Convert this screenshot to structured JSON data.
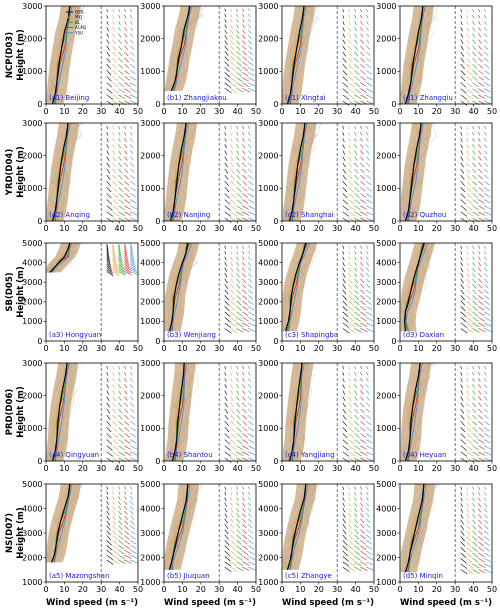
{
  "chart_data": {
    "type": "line",
    "description_x": "Wind speed (m s⁻¹)",
    "xlim": [
      0,
      50
    ],
    "xticks": [
      0,
      10,
      20,
      30,
      40,
      50
    ],
    "legend": [
      "OBS",
      "MYJ",
      "BL",
      "ACM2",
      "YSU"
    ],
    "colors": {
      "OBS": "#000000",
      "MYJ": "#f0a23c",
      "BL": "#2f9e2f",
      "ACM2": "#d62728",
      "YSU": "#3a8fd6",
      "envelope": "#c8a47a"
    },
    "xlabel": "Wind speed (m s$^{-1}$)",
    "rows": [
      {
        "ylabel_1": "NCP(D03)",
        "ylabel_2": "Height (m)",
        "ylim": [
          0,
          3000
        ],
        "yticks": [
          0,
          1000,
          2000,
          3000
        ],
        "panels": [
          {
            "label": "(a1) Beijing",
            "obs_profile": [
              [
                3.5,
                0
              ],
              [
                5,
                300
              ],
              [
                6,
                700
              ],
              [
                7,
                1200
              ],
              [
                8.5,
                1700
              ],
              [
                10,
                2200
              ],
              [
                12,
                2600
              ],
              [
                13,
                3000
              ]
            ]
          },
          {
            "label": "(b1) Zhangjiakou",
            "obs_profile": [
              [
                4,
                400
              ],
              [
                6,
                700
              ],
              [
                7,
                1000
              ],
              [
                8,
                1400
              ],
              [
                9.5,
                1800
              ],
              [
                11,
                2300
              ],
              [
                13,
                2700
              ],
              [
                14,
                3000
              ]
            ]
          },
          {
            "label": "(c1) Xingtai",
            "obs_profile": [
              [
                3,
                0
              ],
              [
                4.5,
                300
              ],
              [
                5.5,
                700
              ],
              [
                6.5,
                1200
              ],
              [
                8,
                1700
              ],
              [
                9.5,
                2200
              ],
              [
                11,
                2600
              ],
              [
                12,
                3000
              ]
            ]
          },
          {
            "label": "(d1) Zhangqiu",
            "obs_profile": [
              [
                3,
                0
              ],
              [
                4.5,
                300
              ],
              [
                6,
                700
              ],
              [
                7,
                1200
              ],
              [
                8.5,
                1700
              ],
              [
                10,
                2200
              ],
              [
                11.5,
                2600
              ],
              [
                12.5,
                3000
              ]
            ]
          }
        ]
      },
      {
        "ylabel_1": "YRD(D04)",
        "ylabel_2": "Height (m)",
        "ylim": [
          0,
          3000
        ],
        "yticks": [
          0,
          1000,
          2000,
          3000
        ],
        "panels": [
          {
            "label": "(a2) Anqing",
            "obs_profile": [
              [
                3.5,
                0
              ],
              [
                5,
                300
              ],
              [
                6,
                700
              ],
              [
                7,
                1200
              ],
              [
                8,
                1700
              ],
              [
                9.5,
                2200
              ],
              [
                11,
                2600
              ],
              [
                12,
                3000
              ]
            ]
          },
          {
            "label": "(b2) Nanjing",
            "obs_profile": [
              [
                3.5,
                0
              ],
              [
                5,
                300
              ],
              [
                6,
                700
              ],
              [
                7,
                1200
              ],
              [
                8,
                1700
              ],
              [
                9.5,
                2200
              ],
              [
                11,
                2600
              ],
              [
                12,
                3000
              ]
            ]
          },
          {
            "label": "(c2) Shanghai",
            "obs_profile": [
              [
                4,
                0
              ],
              [
                5.5,
                300
              ],
              [
                6.5,
                700
              ],
              [
                7.5,
                1200
              ],
              [
                8.5,
                1700
              ],
              [
                10,
                2200
              ],
              [
                11.5,
                2600
              ],
              [
                12.5,
                3000
              ]
            ]
          },
          {
            "label": "(d2) Quzhou",
            "obs_profile": [
              [
                3,
                0
              ],
              [
                4.5,
                300
              ],
              [
                5.5,
                700
              ],
              [
                6.5,
                1200
              ],
              [
                7.5,
                1700
              ],
              [
                9,
                2200
              ],
              [
                10.5,
                2600
              ],
              [
                11.5,
                3000
              ]
            ]
          }
        ]
      },
      {
        "ylabel_1": "SB(D05)",
        "ylabel_2": "Height (m)",
        "ylim": [
          0,
          5000
        ],
        "yticks": [
          0,
          1000,
          2000,
          3000,
          4000,
          5000
        ],
        "panels": [
          {
            "label": "(a3) Hongyuan",
            "obs_profile": [
              [
                2,
                3500
              ],
              [
                4,
                3700
              ],
              [
                6,
                3900
              ],
              [
                8,
                4100
              ],
              [
                10,
                4300
              ],
              [
                11,
                4500
              ],
              [
                12,
                4700
              ],
              [
                13,
                5000
              ]
            ]
          },
          {
            "label": "(b3) Wenjiang",
            "obs_profile": [
              [
                3,
                500
              ],
              [
                4,
                900
              ],
              [
                5,
                1500
              ],
              [
                5.5,
                2200
              ],
              [
                6.5,
                2800
              ],
              [
                8,
                3400
              ],
              [
                10,
                4000
              ],
              [
                12,
                4500
              ],
              [
                13,
                5000
              ]
            ]
          },
          {
            "label": "(c3) Shapingba",
            "obs_profile": [
              [
                2,
                500
              ],
              [
                3.5,
                1000
              ],
              [
                4.5,
                1600
              ],
              [
                5,
                2200
              ],
              [
                6,
                2800
              ],
              [
                7.5,
                3400
              ],
              [
                9.5,
                4000
              ],
              [
                11.5,
                4500
              ],
              [
                13,
                5000
              ]
            ]
          },
          {
            "label": "(d3) Daxian",
            "obs_profile": [
              [
                3,
                500
              ],
              [
                2.5,
                1000
              ],
              [
                3,
                1500
              ],
              [
                4.5,
                2000
              ],
              [
                6,
                2600
              ],
              [
                7.5,
                3200
              ],
              [
                9,
                3700
              ],
              [
                11,
                4300
              ],
              [
                13,
                5000
              ]
            ]
          }
        ]
      },
      {
        "ylabel_1": "PRD(D06)",
        "ylabel_2": "Height (m)",
        "ylim": [
          0,
          3000
        ],
        "yticks": [
          0,
          1000,
          2000,
          3000
        ],
        "panels": [
          {
            "label": "(a4) Qingyuan",
            "obs_profile": [
              [
                3.5,
                0
              ],
              [
                5,
                300
              ],
              [
                6,
                700
              ],
              [
                6.5,
                1200
              ],
              [
                7.5,
                1700
              ],
              [
                9,
                2200
              ],
              [
                10.5,
                2600
              ],
              [
                11.5,
                3000
              ]
            ]
          },
          {
            "label": "(b4) Shantou",
            "obs_profile": [
              [
                4.5,
                0
              ],
              [
                6,
                300
              ],
              [
                7,
                700
              ],
              [
                7.5,
                1200
              ],
              [
                8.5,
                1700
              ],
              [
                9.5,
                2200
              ],
              [
                10.5,
                2600
              ],
              [
                11,
                3000
              ]
            ]
          },
          {
            "label": "(c4) Yangjiang",
            "obs_profile": [
              [
                4,
                0
              ],
              [
                5.5,
                300
              ],
              [
                6.5,
                700
              ],
              [
                7,
                1200
              ],
              [
                8,
                1700
              ],
              [
                9,
                2200
              ],
              [
                10,
                2600
              ],
              [
                11,
                3000
              ]
            ]
          },
          {
            "label": "(d4) Heyuan",
            "obs_profile": [
              [
                3,
                0
              ],
              [
                4.5,
                300
              ],
              [
                5.5,
                700
              ],
              [
                6,
                1200
              ],
              [
                7,
                1700
              ],
              [
                8.5,
                2200
              ],
              [
                10,
                2600
              ],
              [
                11,
                3000
              ]
            ]
          }
        ]
      },
      {
        "ylabel_1": "NS(D07)",
        "ylabel_2": "Height (m)",
        "ylim": [
          1000,
          5000
        ],
        "yticks": [
          1000,
          2000,
          3000,
          4000,
          5000
        ],
        "panels": [
          {
            "label": "(a5) Mazongshan",
            "obs_profile": [
              [
                3,
                1800
              ],
              [
                4.5,
                2100
              ],
              [
                5.5,
                2500
              ],
              [
                6.5,
                3000
              ],
              [
                8,
                3500
              ],
              [
                10,
                4000
              ],
              [
                12,
                4500
              ],
              [
                13,
                5000
              ]
            ]
          },
          {
            "label": "(b5) Jiuquan",
            "obs_profile": [
              [
                3,
                1500
              ],
              [
                4,
                1800
              ],
              [
                5,
                2100
              ],
              [
                6.5,
                2600
              ],
              [
                8,
                3100
              ],
              [
                10,
                3700
              ],
              [
                12,
                4300
              ],
              [
                13,
                5000
              ]
            ]
          },
          {
            "label": "(c5) Zhangye",
            "obs_profile": [
              [
                3,
                1500
              ],
              [
                4.5,
                1900
              ],
              [
                5.5,
                2300
              ],
              [
                6.5,
                2800
              ],
              [
                8,
                3300
              ],
              [
                10,
                3900
              ],
              [
                12,
                4400
              ],
              [
                13,
                5000
              ]
            ]
          },
          {
            "label": "(d5) Minqin",
            "obs_profile": [
              [
                3,
                1400
              ],
              [
                4.5,
                1800
              ],
              [
                5.5,
                2200
              ],
              [
                7,
                2700
              ],
              [
                8.5,
                3200
              ],
              [
                10,
                3700
              ],
              [
                12,
                4300
              ],
              [
                13,
                5000
              ]
            ]
          }
        ]
      }
    ]
  }
}
